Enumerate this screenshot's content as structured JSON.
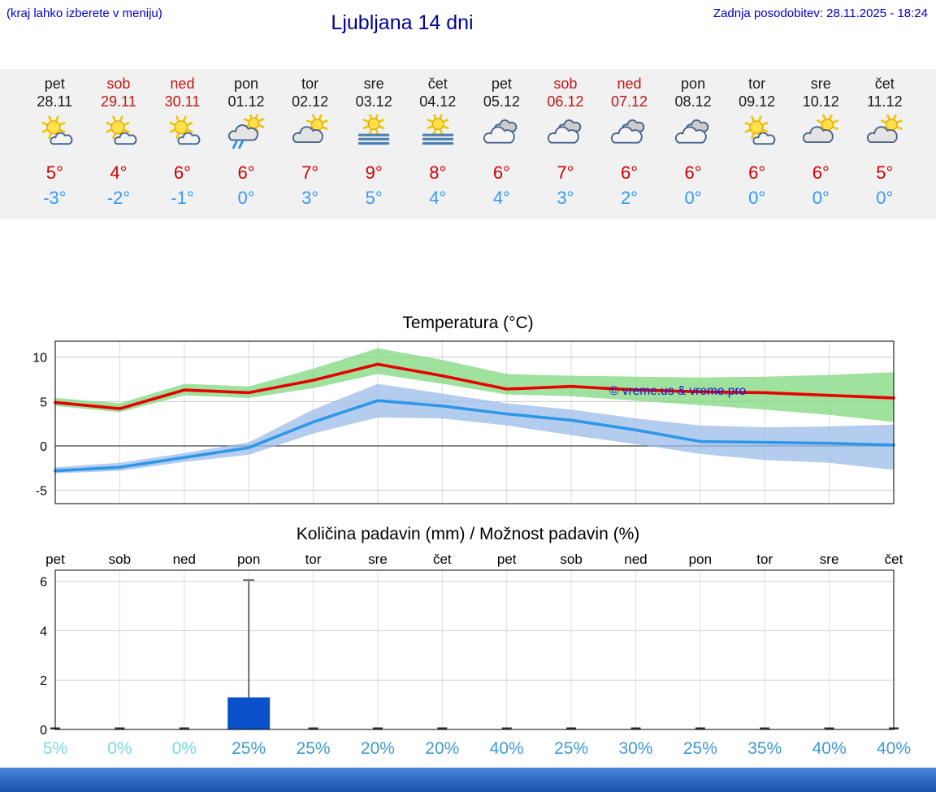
{
  "header": {
    "menu_note": "(kraj lahko izberete v meniju)",
    "title": "Ljubljana 14 dni",
    "last_update": "Zadnja posodobitev: 28.11.2025 - 18:24"
  },
  "colors": {
    "header_blue": "#0000cc",
    "title_blue": "#00009e",
    "weekend_red": "#c31414",
    "high_temp_red": "#d40000",
    "low_temp_blue": "#3399ff",
    "max_line": "#e60000",
    "min_line": "#2e97e8",
    "max_band": "#7ed87e",
    "min_band": "#9bbce8",
    "bar_blue": "#0a50c8",
    "prob_cyan": "#79d8e2",
    "prob_blue": "#3e9ad2",
    "strip_bg": "#f1f1f1"
  },
  "forecast": {
    "days": [
      {
        "name": "pet",
        "date": "28.11",
        "weekend": false,
        "icon": "sun-small-cloud",
        "high": "5°",
        "low": "-3°"
      },
      {
        "name": "sob",
        "date": "29.11",
        "weekend": true,
        "icon": "sun-small-cloud",
        "high": "4°",
        "low": "-2°"
      },
      {
        "name": "ned",
        "date": "30.11",
        "weekend": true,
        "icon": "sun-small-cloud",
        "high": "6°",
        "low": "-1°"
      },
      {
        "name": "pon",
        "date": "01.12",
        "weekend": false,
        "icon": "rain-sun",
        "high": "6°",
        "low": "0°"
      },
      {
        "name": "tor",
        "date": "02.12",
        "weekend": false,
        "icon": "sun-cloud",
        "high": "7°",
        "low": "3°"
      },
      {
        "name": "sre",
        "date": "03.12",
        "weekend": false,
        "icon": "fog-sun",
        "high": "9°",
        "low": "5°"
      },
      {
        "name": "čet",
        "date": "04.12",
        "weekend": false,
        "icon": "fog-sun",
        "high": "8°",
        "low": "4°"
      },
      {
        "name": "pet",
        "date": "05.12",
        "weekend": false,
        "icon": "cloudy",
        "high": "6°",
        "low": "4°"
      },
      {
        "name": "sob",
        "date": "06.12",
        "weekend": true,
        "icon": "cloudy",
        "high": "7°",
        "low": "3°"
      },
      {
        "name": "ned",
        "date": "07.12",
        "weekend": true,
        "icon": "cloudy",
        "high": "6°",
        "low": "2°"
      },
      {
        "name": "pon",
        "date": "08.12",
        "weekend": false,
        "icon": "cloudy",
        "high": "6°",
        "low": "0°"
      },
      {
        "name": "tor",
        "date": "09.12",
        "weekend": false,
        "icon": "sun-small-cloud",
        "high": "6°",
        "low": "0°"
      },
      {
        "name": "sre",
        "date": "10.12",
        "weekend": false,
        "icon": "sun-cloud",
        "high": "6°",
        "low": "0°"
      },
      {
        "name": "čet",
        "date": "11.12",
        "weekend": false,
        "icon": "sun-cloud",
        "high": "5°",
        "low": "0°"
      }
    ]
  },
  "chart_data": [
    {
      "type": "line",
      "title": "Temperatura (°C)",
      "categories": [
        "pet 28.11",
        "sob 29.11",
        "ned 30.11",
        "pon 01.12",
        "tor 02.12",
        "sre 03.12",
        "čet 04.12",
        "pet 05.12",
        "sob 06.12",
        "ned 07.12",
        "pon 08.12",
        "tor 09.12",
        "sre 10.12",
        "čet 11.12"
      ],
      "ylim": [
        -6.5,
        11.8
      ],
      "yticks": [
        -5,
        0,
        5,
        10
      ],
      "grid": true,
      "legend": "none",
      "series": [
        {
          "name": "max-temperature",
          "color": "#e60000",
          "values": [
            4.9,
            4.2,
            6.3,
            6.0,
            7.4,
            9.2,
            7.9,
            6.4,
            6.7,
            6.3,
            6.1,
            6.0,
            5.7,
            5.4
          ]
        },
        {
          "name": "min-temperature",
          "color": "#2e97e8",
          "values": [
            -2.8,
            -2.4,
            -1.3,
            -0.2,
            2.7,
            5.1,
            4.5,
            3.6,
            2.9,
            1.8,
            0.5,
            0.4,
            0.3,
            0.1
          ]
        }
      ],
      "bands": [
        {
          "name": "max-range",
          "color": "#7ed87e",
          "upper": [
            5.4,
            4.8,
            7.0,
            6.7,
            8.7,
            11.0,
            9.7,
            8.1,
            7.9,
            7.8,
            7.7,
            7.8,
            8.0,
            8.3
          ],
          "lower": [
            4.5,
            3.8,
            5.7,
            5.4,
            6.5,
            8.1,
            7.0,
            5.8,
            5.6,
            5.1,
            4.6,
            4.1,
            3.5,
            2.7
          ]
        },
        {
          "name": "min-range",
          "color": "#9bbce8",
          "upper": [
            -2.4,
            -1.9,
            -0.8,
            0.4,
            4.1,
            7.0,
            5.9,
            4.8,
            4.1,
            3.1,
            2.3,
            2.1,
            2.2,
            2.4
          ],
          "lower": [
            -3.1,
            -2.8,
            -1.8,
            -1.0,
            1.4,
            3.2,
            3.1,
            2.3,
            1.2,
            0.2,
            -0.9,
            -1.6,
            -1.9,
            -2.7
          ]
        }
      ],
      "watermark": "© vreme.us & vreme.pro"
    },
    {
      "type": "bar",
      "title": "Količina padavin (mm) / Možnost padavin (%)",
      "categories": [
        "pet",
        "sob",
        "ned",
        "pon",
        "tor",
        "sre",
        "čet",
        "pet",
        "sob",
        "ned",
        "pon",
        "tor",
        "sre",
        "čet"
      ],
      "values": [
        0,
        0,
        0,
        1.3,
        0,
        0,
        0,
        0,
        0,
        0,
        0,
        0,
        0,
        0
      ],
      "whiskers": [
        0,
        0,
        0,
        6.05,
        0,
        0,
        0,
        0,
        0,
        0,
        0,
        0,
        0,
        0
      ],
      "ylim": [
        0,
        6.45
      ],
      "yticks": [
        0,
        2,
        4,
        6
      ],
      "grid": true,
      "bar_color": "#0a50c8",
      "probabilities": [
        "5%",
        "0%",
        "0%",
        "25%",
        "25%",
        "20%",
        "20%",
        "40%",
        "25%",
        "30%",
        "25%",
        "35%",
        "40%",
        "40%"
      ]
    }
  ]
}
